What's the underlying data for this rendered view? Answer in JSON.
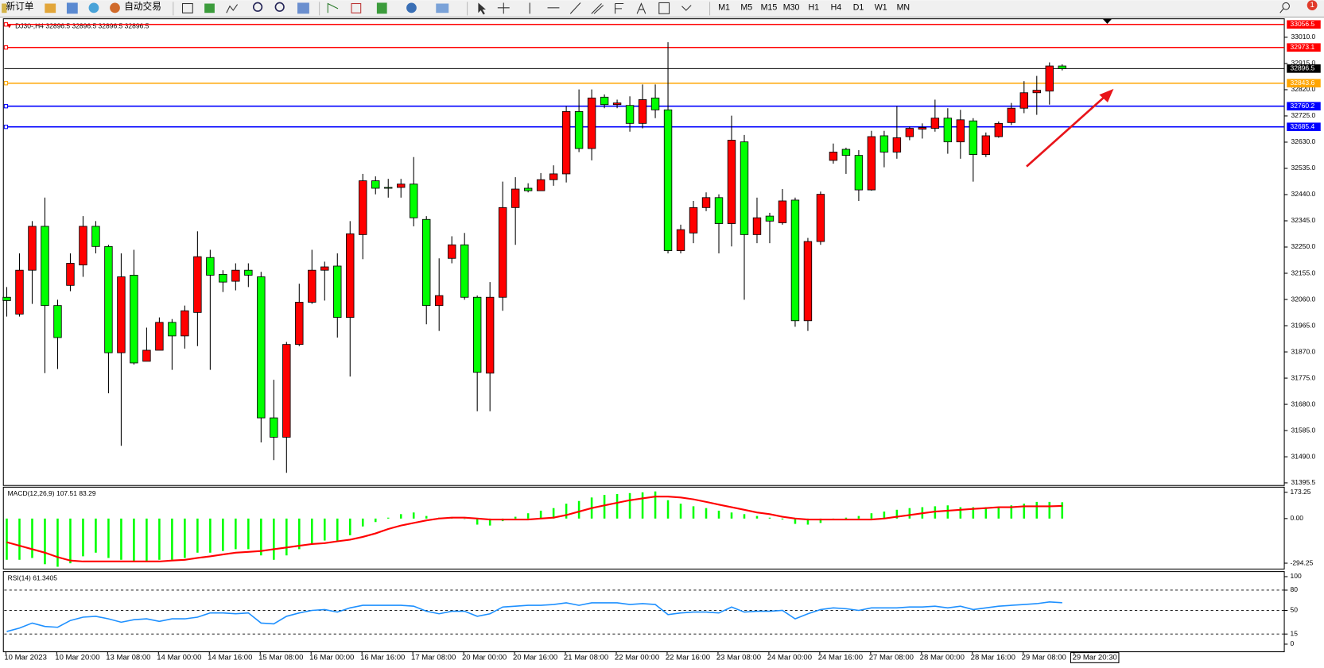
{
  "toolbar": {
    "buttons": [
      "新订单",
      "自动交易"
    ],
    "timeframes": [
      "M1",
      "M5",
      "M15",
      "M30",
      "H1",
      "H4",
      "D1",
      "W1",
      "MN"
    ],
    "badge": "1"
  },
  "chart_data": [
    {
      "type": "candlestick",
      "title": "DJ30-,H4  32896.5 32896.5 32896.5 32896.5",
      "bull_color": "#ff0000",
      "bear_color": "#00ff00",
      "open": [
        32068,
        32007,
        32166,
        32325,
        32038,
        32111,
        32185,
        32325,
        32252,
        31867,
        32148,
        31836,
        31876,
        31977,
        31928,
        32013,
        32212,
        32151,
        32126,
        32166,
        32142,
        31631,
        31561,
        31897,
        32050,
        32166,
        32181,
        31995,
        32295,
        32490,
        32466,
        32466,
        32478,
        32350,
        32038,
        32209,
        32258,
        32068,
        31793,
        32068,
        32393,
        32463,
        32454,
        32494,
        32515,
        32741,
        32607,
        32793,
        32766,
        32763,
        32698,
        32790,
        32747,
        32237,
        32301,
        32393,
        32429,
        32335,
        32631,
        32295,
        32362,
        32338,
        32420,
        31983,
        32270,
        32564,
        32604,
        32582,
        32457,
        32653,
        32594,
        32650,
        32677,
        32680,
        32717,
        32631,
        32707,
        32585,
        32650,
        32701,
        32753,
        32809,
        32815,
        32906
      ],
      "high": [
        32105,
        32227,
        32344,
        32429,
        32059,
        32227,
        32362,
        32344,
        32258,
        32227,
        32240,
        31958,
        31995,
        31989,
        32038,
        32307,
        32240,
        32166,
        32191,
        32191,
        32160,
        31769,
        31906,
        32117,
        32240,
        32197,
        32227,
        32344,
        32515,
        32506,
        32497,
        32497,
        32576,
        32362,
        32209,
        32289,
        32301,
        32074,
        32123,
        32487,
        32503,
        32481,
        32518,
        32546,
        32760,
        32821,
        32821,
        32803,
        32784,
        32796,
        32839,
        32839,
        32992,
        32331,
        32417,
        32448,
        32441,
        32726,
        32656,
        32429,
        32374,
        32460,
        32429,
        32283,
        32451,
        32625,
        32610,
        32601,
        32671,
        32671,
        32760,
        32686,
        32698,
        32784,
        32753,
        32747,
        32717,
        32665,
        32705,
        32772,
        32851,
        32870,
        32919,
        32912
      ],
      "low": [
        31998,
        31998,
        32044,
        31793,
        31808,
        32090,
        32142,
        32227,
        31720,
        31530,
        31824,
        31836,
        31876,
        31805,
        31882,
        31891,
        31805,
        32087,
        32093,
        32105,
        31542,
        31478,
        31432,
        31891,
        32044,
        32056,
        31922,
        31781,
        32206,
        32441,
        32429,
        32429,
        32325,
        31970,
        31946,
        32191,
        32059,
        31655,
        31655,
        32019,
        32258,
        32448,
        32454,
        32472,
        32484,
        32594,
        32564,
        32753,
        32753,
        32668,
        32680,
        32717,
        32227,
        32227,
        32264,
        32380,
        32227,
        32252,
        32059,
        32264,
        32264,
        32331,
        31961,
        31946,
        32258,
        32552,
        32515,
        32417,
        32454,
        32539,
        32570,
        32637,
        32643,
        32668,
        32588,
        32570,
        32487,
        32576,
        32646,
        32692,
        32735,
        32729,
        32766,
        32890
      ],
      "close": [
        32056,
        32166,
        32325,
        32038,
        31922,
        32191,
        32325,
        32252,
        31867,
        32142,
        31830,
        31876,
        31977,
        31928,
        32019,
        32215,
        32148,
        32123,
        32166,
        32148,
        31631,
        31561,
        31897,
        32050,
        32166,
        32178,
        31995,
        32298,
        32490,
        32463,
        32463,
        32478,
        32356,
        32038,
        32074,
        32258,
        32068,
        31796,
        32068,
        32393,
        32460,
        32454,
        32494,
        32515,
        32741,
        32607,
        32790,
        32766,
        32772,
        32698,
        32784,
        32747,
        32237,
        32313,
        32393,
        32429,
        32335,
        32637,
        32295,
        32356,
        32344,
        32417,
        31983,
        32270,
        32441,
        32594,
        32582,
        32457,
        32650,
        32594,
        32646,
        32680,
        32683,
        32717,
        32631,
        32711,
        32585,
        32653,
        32698,
        32753,
        32809,
        32818,
        32906,
        32896.5
      ],
      "ylim": [
        31386,
        33077
      ],
      "yticks": [
        {
          "value": 33010,
          "label": "33010.0"
        },
        {
          "value": 32915,
          "label": "32915.0"
        },
        {
          "value": 32820,
          "label": "32820.0"
        },
        {
          "value": 32725,
          "label": "32725.0"
        },
        {
          "value": 32630,
          "label": "32630.0"
        },
        {
          "value": 32535,
          "label": "32535.0"
        },
        {
          "value": 32440,
          "label": "32440.0"
        },
        {
          "value": 32345,
          "label": "32345.0"
        },
        {
          "value": 32250,
          "label": "32250.0"
        },
        {
          "value": 32155,
          "label": "32155.0"
        },
        {
          "value": 32060,
          "label": "32060.0"
        },
        {
          "value": 31965,
          "label": "31965.0"
        },
        {
          "value": 31870,
          "label": "31870.0"
        },
        {
          "value": 31775,
          "label": "31775.0"
        },
        {
          "value": 31680,
          "label": "31680.0"
        },
        {
          "value": 31585,
          "label": "31585.0"
        },
        {
          "value": 31490,
          "label": "31490.0"
        },
        31395.5
      ],
      "hlines": [
        {
          "value": 33056.5,
          "color": "#ff0000"
        },
        {
          "value": 32973.1,
          "color": "#ff0000"
        },
        {
          "value": 32896.5,
          "color": "#000000"
        },
        {
          "value": 32843.6,
          "color": "#ffa500"
        },
        {
          "value": 32760.2,
          "color": "#0000ff"
        },
        {
          "value": 32685.4,
          "color": "#0000ff"
        }
      ],
      "time_labels": [
        "10 Mar 2023",
        "10 Mar 20:00",
        "13 Mar 08:00",
        "14 Mar 00:00",
        "14 Mar 16:00",
        "15 Mar 08:00",
        "16 Mar 00:00",
        "16 Mar 16:00",
        "17 Mar 08:00",
        "20 Mar 00:00",
        "20 Mar 16:00",
        "21 Mar 08:00",
        "22 Mar 00:00",
        "22 Mar 16:00",
        "23 Mar 08:00",
        "24 Mar 00:00",
        "24 Mar 16:00",
        "27 Mar 08:00",
        "28 Mar 00:00",
        "28 Mar 16:00",
        "29 Mar 08:00",
        "29 Mar 20:30"
      ]
    },
    {
      "type": "macd",
      "title": "MACD(12,26,9) 107.51 83.29",
      "hist_color": "#00ff00",
      "signal_color": "#ff0000",
      "histogram": [
        -272,
        -272,
        -260,
        -301,
        -318,
        -295,
        -249,
        -225,
        -260,
        -272,
        -283,
        -283,
        -272,
        -272,
        -260,
        -225,
        -225,
        -214,
        -202,
        -202,
        -243,
        -272,
        -243,
        -202,
        -168,
        -145,
        -145,
        -110,
        -52,
        -23,
        6,
        29,
        40,
        17,
        6,
        6,
        0,
        -40,
        -46,
        -17,
        12,
        35,
        52,
        69,
        98,
        116,
        139,
        156,
        162,
        168,
        173,
        179,
        121,
        98,
        81,
        69,
        52,
        40,
        29,
        17,
        6,
        -6,
        -35,
        -40,
        -29,
        -6,
        6,
        17,
        35,
        46,
        58,
        69,
        75,
        81,
        87,
        75,
        75,
        75,
        75,
        87,
        98,
        110,
        110,
        107.51
      ],
      "signal": [
        -156,
        -179,
        -202,
        -225,
        -254,
        -277,
        -283,
        -283,
        -283,
        -283,
        -283,
        -283,
        -283,
        -277,
        -272,
        -260,
        -249,
        -237,
        -225,
        -220,
        -214,
        -202,
        -191,
        -179,
        -168,
        -162,
        -150,
        -139,
        -121,
        -98,
        -69,
        -46,
        -29,
        -12,
        0,
        6,
        6,
        0,
        -6,
        -6,
        -6,
        -6,
        0,
        6,
        23,
        46,
        69,
        87,
        104,
        121,
        133,
        145,
        145,
        139,
        127,
        110,
        92,
        75,
        58,
        40,
        29,
        12,
        0,
        -6,
        -6,
        -6,
        -6,
        -6,
        -6,
        0,
        12,
        23,
        35,
        46,
        52,
        58,
        64,
        69,
        75,
        75,
        81,
        81,
        81,
        83.29
      ],
      "ylim": [
        -333,
        207
      ],
      "yticks": [
        173.25,
        {
          "value": 0,
          "label": "0.00"
        },
        -294.25
      ]
    },
    {
      "type": "rsi",
      "title": "RSI(14) 61.3405",
      "color": "#1e90ff",
      "values": [
        18.75,
        23.75,
        31.25,
        26.25,
        25,
        35,
        40,
        41.25,
        37.5,
        32.5,
        36.25,
        37.5,
        33.75,
        37.5,
        37.5,
        40,
        46.25,
        46.25,
        45,
        46.25,
        31.25,
        30,
        41.25,
        46.25,
        50,
        51.25,
        47.5,
        53.75,
        57.5,
        57.5,
        57.5,
        57.5,
        56.25,
        48.75,
        45,
        48.75,
        48.75,
        41.25,
        45,
        55,
        56.25,
        57.5,
        57.5,
        58.75,
        61.25,
        57.5,
        61.25,
        61.25,
        61.25,
        58.75,
        60,
        58.75,
        43.75,
        46.25,
        47.5,
        47.5,
        46.25,
        55,
        47.5,
        48.75,
        48.75,
        50,
        37.5,
        45,
        51.25,
        53.75,
        52.5,
        50,
        53.75,
        53.75,
        53.75,
        55,
        55,
        56.25,
        53.75,
        56.25,
        51.25,
        53.75,
        56.25,
        57.5,
        58.75,
        60,
        62.5,
        61.3405
      ],
      "ylim": [
        -11.25,
        107.5
      ],
      "yticks": [
        100,
        80,
        50,
        15,
        0
      ],
      "levels": [
        80,
        50,
        15
      ]
    }
  ]
}
